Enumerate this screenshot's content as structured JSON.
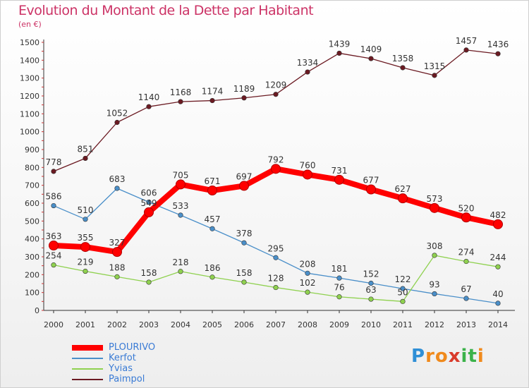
{
  "header": {
    "title": "Evolution du Montant de la Dette par Habitant",
    "subtitle": "(en €)"
  },
  "logo": {
    "text": "Proxiti",
    "letters": [
      "P",
      "r",
      "o",
      "x",
      "i",
      "t",
      "i"
    ],
    "colors": [
      "#2f8fd6",
      "#f08a1c",
      "#f08a1c",
      "#d93b2b",
      "#3bb24a",
      "#3bb24a",
      "#f08a1c"
    ]
  },
  "chart_data": {
    "type": "line",
    "title": "Evolution du Montant de la Dette par Habitant",
    "subtitle": "(en €)",
    "xlabel": "",
    "ylabel": "",
    "categories": [
      "2000",
      "2001",
      "2002",
      "2003",
      "2004",
      "2005",
      "2006",
      "2007",
      "2008",
      "2009",
      "2010",
      "2011",
      "2012",
      "2013",
      "2014"
    ],
    "ylim": [
      0,
      1500
    ],
    "yticks": [
      0,
      100,
      200,
      300,
      400,
      500,
      600,
      700,
      800,
      900,
      1000,
      1100,
      1200,
      1300,
      1400,
      1500
    ],
    "grid": false,
    "legend_position": "bottom-left",
    "series": [
      {
        "name": "PLOURIVO",
        "color": "#ff0000",
        "values": [
          363,
          355,
          327,
          549,
          705,
          671,
          697,
          792,
          760,
          731,
          677,
          627,
          573,
          520,
          482
        ],
        "labels": [
          "363",
          "355",
          "327",
          "549",
          "705",
          "671",
          "697",
          "792",
          "760",
          "731",
          "677",
          "627",
          "573",
          "520",
          "482"
        ]
      },
      {
        "name": "Kerfot",
        "color": "#4a8fc9",
        "values": [
          586,
          510,
          683,
          606,
          533,
          457,
          378,
          295,
          208,
          181,
          152,
          122,
          93,
          67,
          40
        ],
        "labels": [
          "586",
          "510",
          "683",
          "606",
          "533",
          "457",
          "378",
          "295",
          "208",
          "181",
          "152",
          "122",
          "93",
          "67",
          "40"
        ]
      },
      {
        "name": "Yvias",
        "color": "#8fd14f",
        "values": [
          254,
          219,
          188,
          158,
          218,
          186,
          158,
          128,
          102,
          76,
          63,
          50,
          308,
          274,
          244
        ],
        "labels": [
          "254",
          "219",
          "188",
          "158",
          "218",
          "186",
          "158",
          "128",
          "102",
          "76",
          "63",
          "50",
          "308",
          "274",
          "244"
        ]
      },
      {
        "name": "Paimpol",
        "color": "#6b1a22",
        "values": [
          778,
          851,
          1052,
          1140,
          1168,
          1174,
          1189,
          1209,
          1334,
          1439,
          1409,
          1358,
          1315,
          1457,
          1436
        ],
        "labels": [
          "778",
          "851",
          "1052",
          "1140",
          "1168",
          "1174",
          "1189",
          "1209",
          "1334",
          "1439",
          "1409",
          "1358",
          "1315",
          "1457",
          "1436"
        ]
      }
    ]
  }
}
